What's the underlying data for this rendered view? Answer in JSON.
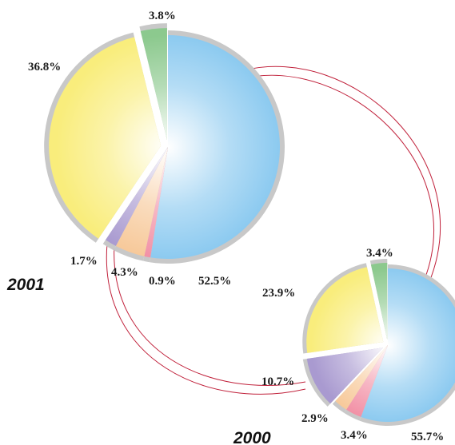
{
  "chart_data": [
    {
      "type": "pie",
      "label": "2001",
      "slices": [
        {
          "value": 52.5,
          "label": "52.5%",
          "color": "#8ccaf0"
        },
        {
          "value": 0.9,
          "label": "0.9%",
          "color": "#f291a6"
        },
        {
          "value": 4.3,
          "label": "4.3%",
          "color": "#f7c99a"
        },
        {
          "value": 1.7,
          "label": "1.7%",
          "color": "#a99ad0"
        },
        {
          "value": 36.8,
          "label": "36.8%",
          "color": "#f9ed7c"
        },
        {
          "value": 3.8,
          "label": "3.8%",
          "color": "#8cc98e"
        }
      ]
    },
    {
      "type": "pie",
      "label": "2000",
      "slices": [
        {
          "value": 55.7,
          "label": "55.7%",
          "color": "#8ccaf0"
        },
        {
          "value": 3.4,
          "label": "3.4%",
          "color": "#f291a6"
        },
        {
          "value": 2.9,
          "label": "2.9%",
          "color": "#f7c99a"
        },
        {
          "value": 10.7,
          "label": "10.7%",
          "color": "#a99ad0"
        },
        {
          "value": 23.9,
          "label": "23.9%",
          "color": "#f9ed7c"
        },
        {
          "value": 3.4,
          "label": "3.4%",
          "color": "#8cc98e"
        }
      ]
    }
  ],
  "colors": {
    "rim": "#c8c8c8",
    "connector": "#c0203a"
  }
}
